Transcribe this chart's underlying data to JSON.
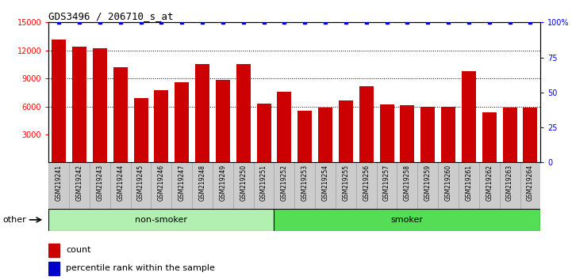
{
  "title": "GDS3496 / 206710_s_at",
  "samples": [
    "GSM219241",
    "GSM219242",
    "GSM219243",
    "GSM219244",
    "GSM219245",
    "GSM219246",
    "GSM219247",
    "GSM219248",
    "GSM219249",
    "GSM219250",
    "GSM219251",
    "GSM219252",
    "GSM219253",
    "GSM219254",
    "GSM219255",
    "GSM219256",
    "GSM219257",
    "GSM219258",
    "GSM219259",
    "GSM219260",
    "GSM219261",
    "GSM219262",
    "GSM219263",
    "GSM219264"
  ],
  "counts": [
    13200,
    12400,
    12200,
    10200,
    6900,
    7700,
    8600,
    10500,
    8800,
    10500,
    6300,
    7600,
    5500,
    5900,
    6600,
    8200,
    6200,
    6100,
    6000,
    6000,
    9800,
    5400,
    5900,
    5900
  ],
  "percentile": [
    100,
    100,
    100,
    100,
    100,
    100,
    100,
    100,
    100,
    100,
    100,
    100,
    100,
    100,
    100,
    100,
    100,
    100,
    100,
    100,
    100,
    100,
    100,
    100
  ],
  "groups": [
    {
      "label": "non-smoker",
      "start": 0,
      "end": 11,
      "color": "#b2f0b2"
    },
    {
      "label": "smoker",
      "start": 11,
      "end": 24,
      "color": "#55dd55"
    }
  ],
  "bar_color": "#CC0000",
  "percentile_color": "#0000CC",
  "ylim_left": [
    0,
    15000
  ],
  "ylim_right": [
    0,
    100
  ],
  "yticks_left": [
    3000,
    6000,
    9000,
    12000,
    15000
  ],
  "yticks_right": [
    0,
    25,
    50,
    75,
    100
  ],
  "grid_values": [
    6000,
    9000,
    12000,
    15000
  ],
  "other_label": "other",
  "xtick_bg": "#CCCCCC",
  "xtick_border": "#999999"
}
